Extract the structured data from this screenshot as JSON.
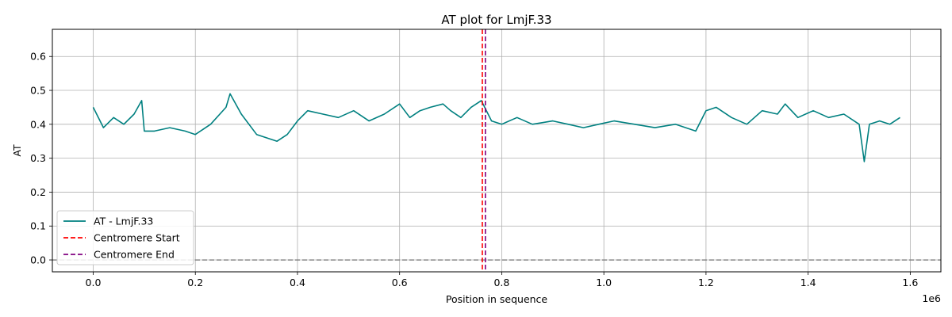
{
  "chart_data": {
    "type": "line",
    "title": "AT plot for LmjF.33",
    "xlabel": "Position in sequence",
    "ylabel": "AT",
    "x_offset_label": "1e6",
    "xlim": [
      -80000,
      1660000
    ],
    "ylim": [
      -0.035,
      0.68
    ],
    "x_ticks": [
      0,
      200000,
      400000,
      600000,
      800000,
      1000000,
      1200000,
      1400000,
      1600000
    ],
    "x_tick_labels": [
      "0.0",
      "0.2",
      "0.4",
      "0.6",
      "0.8",
      "1.0",
      "1.2",
      "1.4",
      "1.6"
    ],
    "y_ticks": [
      0.0,
      0.1,
      0.2,
      0.3,
      0.4,
      0.5,
      0.6
    ],
    "y_tick_labels": [
      "0.0",
      "0.1",
      "0.2",
      "0.3",
      "0.4",
      "0.5",
      "0.6"
    ],
    "grid": true,
    "legend_position": "lower-left",
    "series": [
      {
        "name": "AT - LmjF.33",
        "color": "#008080",
        "x": [
          0,
          20000,
          40000,
          60000,
          80000,
          95000,
          100000,
          120000,
          150000,
          180000,
          200000,
          230000,
          260000,
          268000,
          290000,
          320000,
          340000,
          360000,
          380000,
          400000,
          420000,
          450000,
          480000,
          510000,
          540000,
          570000,
          600000,
          620000,
          640000,
          660000,
          685000,
          700000,
          720000,
          740000,
          760000,
          780000,
          800000,
          830000,
          860000,
          900000,
          930000,
          960000,
          990000,
          1020000,
          1060000,
          1100000,
          1140000,
          1180000,
          1200000,
          1220000,
          1250000,
          1280000,
          1310000,
          1340000,
          1355000,
          1380000,
          1410000,
          1440000,
          1470000,
          1500000,
          1510000,
          1520000,
          1540000,
          1560000,
          1580000
        ],
        "values": [
          0.45,
          0.39,
          0.42,
          0.4,
          0.43,
          0.47,
          0.38,
          0.38,
          0.39,
          0.38,
          0.37,
          0.4,
          0.45,
          0.49,
          0.43,
          0.37,
          0.36,
          0.35,
          0.37,
          0.41,
          0.44,
          0.43,
          0.42,
          0.44,
          0.41,
          0.43,
          0.46,
          0.42,
          0.44,
          0.45,
          0.46,
          0.44,
          0.42,
          0.45,
          0.47,
          0.41,
          0.4,
          0.42,
          0.4,
          0.41,
          0.4,
          0.39,
          0.4,
          0.41,
          0.4,
          0.39,
          0.4,
          0.38,
          0.44,
          0.45,
          0.42,
          0.4,
          0.44,
          0.43,
          0.46,
          0.42,
          0.44,
          0.42,
          0.43,
          0.4,
          0.29,
          0.4,
          0.41,
          0.4,
          0.42
        ]
      },
      {
        "name": "Centromere Start",
        "color": "#ff0000",
        "style": "dashed",
        "x_position": 762000
      },
      {
        "name": "Centromere End",
        "color": "#800080",
        "style": "dashed",
        "x_position": 768000
      }
    ],
    "baseline": {
      "y": 0.0,
      "color": "#808080",
      "style": "dashed"
    }
  }
}
